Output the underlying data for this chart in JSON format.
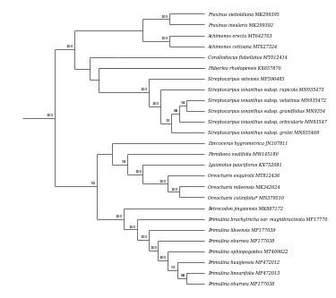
{
  "background": "#ffffff",
  "line_color": "#555555",
  "text_color": "#000000",
  "font_size": 3.5,
  "bootstrap_font_size": 3.2,
  "lw": 0.6,
  "taxa_names": [
    "Fraxinus sieboldiana MK299395",
    "Fraxinus insularis MK299392",
    "Achimenes erecta MT642703",
    "Achimenes cettoana MT627324",
    "Corallodiscus flabellatus MT012414",
    "Haberlea rhodopensis KX657870",
    "Streptocarpus witensis MF596485",
    "Streptocarpus ionanthus subsp. rupicola MN935473",
    "Streptocarpus ionanthus subsp. velutinus MN935472",
    "Streptocarpus ionanthus subsp. grandfolius MN9354",
    "Streptocarpus ionanthus subsp. orbicularis MN93547",
    "Streptocarpus ionanthus subsp. grotei MN935469",
    "Dorcoceras hygrometrica JN107811",
    "Hemiboea ovalifolia MW145180",
    "Lysionotus pauciflorus KX752081",
    "Oreocharis esquirolii MT812436",
    "Oreocharis mileensis MK342624",
    "Oreocharis cotinifolia* MN379510",
    "Petrocodon jingsiensis MK887172",
    "Primulina brachytricha var. magnibracteata MF17770",
    "Primulina liboensis MF177039",
    "Primulina eburnea MF177038",
    "Primulina ophiopogoides MT409622",
    "Primulina huaijiensis MF472012",
    "Primulina linearifolia MF472013",
    "Primulina eburnea MF177038"
  ],
  "bootstrap_values": {
    "fraxinus_pair": 100,
    "achimenes_pair": 100,
    "strep_94": 94,
    "strep_88": 88,
    "strep_70": 70,
    "strep_100ion": 100,
    "strep_100all": 100,
    "ore_100inner": 100,
    "ore_100outer": 100,
    "lys_100": 100,
    "hemi_93": 93,
    "prim_88": 88,
    "prim_53": 53,
    "prim_100_4": 100,
    "prim_100_3": 100,
    "prim_100_2": 100,
    "prim_100_1": 100,
    "pet_100": 100,
    "lower_81": 81,
    "main_100": 100
  }
}
